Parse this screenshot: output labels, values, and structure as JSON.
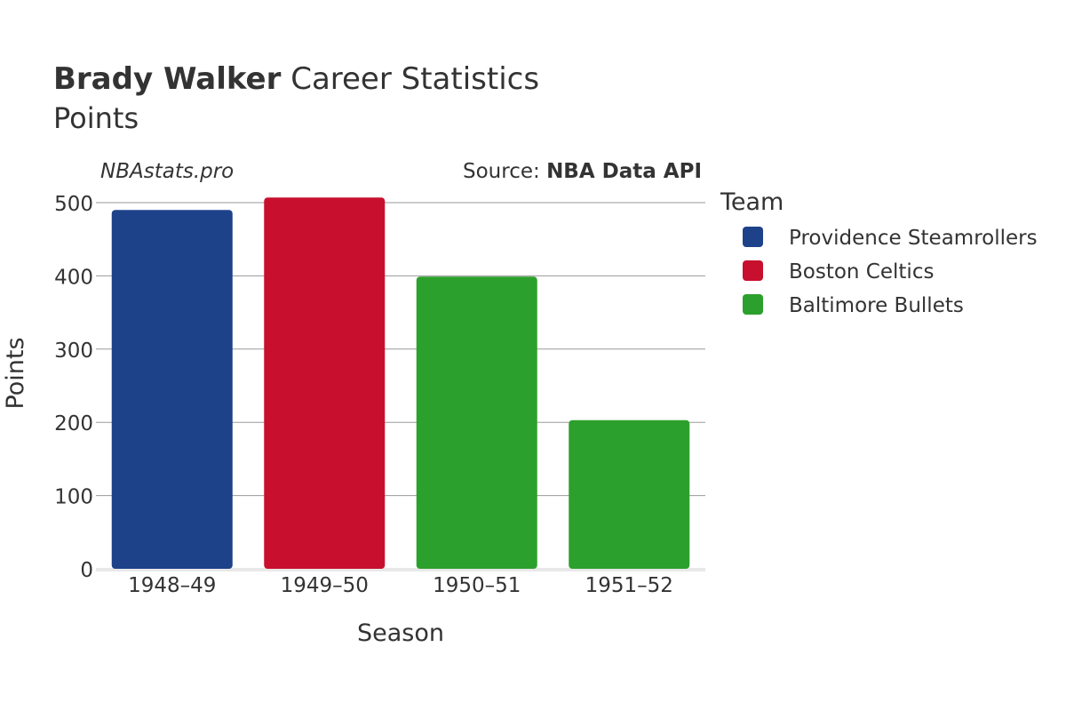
{
  "header": {
    "player_name": "Brady Walker",
    "title_rest": "Career Statistics",
    "subtitle": "Points"
  },
  "watermark": "NBAstats.pro",
  "source": {
    "label": "Source: ",
    "name": "NBA Data API"
  },
  "legend": {
    "title": "Team",
    "items": [
      {
        "label": "Providence Steamrollers",
        "color": "#1d428a"
      },
      {
        "label": "Boston Celtics",
        "color": "#c8102e"
      },
      {
        "label": "Baltimore Bullets",
        "color": "#2ca02c"
      }
    ]
  },
  "chart_data": {
    "type": "bar",
    "title": "Brady Walker Career Statistics",
    "subtitle": "Points",
    "xlabel": "Season",
    "ylabel": "Points",
    "categories": [
      "1948–49",
      "1949–50",
      "1950–51",
      "1951–52"
    ],
    "values": [
      490,
      507,
      399,
      203
    ],
    "teams": [
      "Providence Steamrollers",
      "Boston Celtics",
      "Baltimore Bullets",
      "Baltimore Bullets"
    ],
    "colors": [
      "#1d428a",
      "#c8102e",
      "#2ca02c",
      "#2ca02c"
    ],
    "ylim": [
      0,
      525
    ],
    "yticks": [
      0,
      100,
      200,
      300,
      400,
      500
    ],
    "grid": true,
    "legend_position": "right"
  }
}
